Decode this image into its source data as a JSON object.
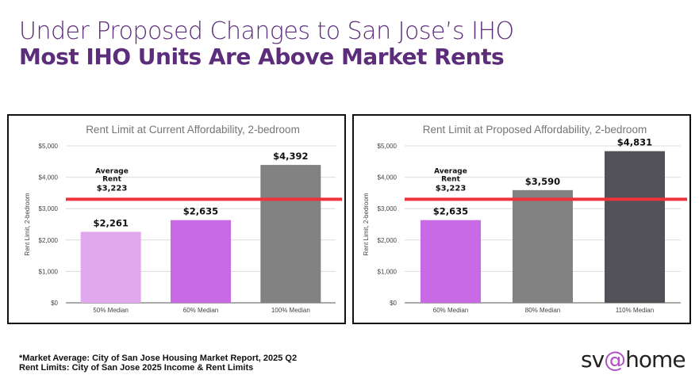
{
  "header": {
    "line1": "Under Proposed Changes to San Jose’s IHO",
    "line2": "Most IHO Units Are Above Market Rents"
  },
  "chart_data": [
    {
      "type": "bar",
      "title": "Rent Limit at Current Affordability, 2-bedroom",
      "ylabel": "Rent Limit, 2-bedroom",
      "xlabel": "",
      "categories": [
        "50% Median",
        "60% Median",
        "100% Median"
      ],
      "values": [
        2261,
        2635,
        4392
      ],
      "value_labels": [
        "$2,261",
        "$2,635",
        "$4,392"
      ],
      "colors": [
        "#e2a8ee",
        "#c96ae5",
        "#828282"
      ],
      "ylim": [
        0,
        5000
      ],
      "yticks": [
        "$0",
        "$1,000",
        "$2,000",
        "$3,000",
        "$4,000",
        "$5,000"
      ],
      "reference_line": {
        "value": 3223,
        "color": "#f0323a",
        "label1": "Average",
        "label2": "Rent",
        "label3": "$3,223"
      },
      "grid": true
    },
    {
      "type": "bar",
      "title": "Rent Limit at Proposed Affordability, 2-bedroom",
      "ylabel": "Rent Limit, 2-bedroom",
      "xlabel": "",
      "categories": [
        "60% Median",
        "80% Median",
        "110% Median"
      ],
      "values": [
        2635,
        3590,
        4831
      ],
      "value_labels": [
        "$2,635",
        "$3,590",
        "$4,831"
      ],
      "colors": [
        "#c96ae5",
        "#828282",
        "#525157"
      ],
      "ylim": [
        0,
        5000
      ],
      "yticks": [
        "$0",
        "$1,000",
        "$2,000",
        "$3,000",
        "$4,000",
        "$5,000"
      ],
      "reference_line": {
        "value": 3223,
        "color": "#f0323a",
        "label1": "Average",
        "label2": "Rent",
        "label3": "$3,223"
      },
      "grid": true
    }
  ],
  "footer": {
    "note1": "*Market Average: City of San Jose Housing Market Report, 2025 Q2",
    "note2": "Rent Limits: City of San Jose 2025 Income & Rent Limits"
  },
  "logo": {
    "pre": "sv",
    "at": "@",
    "post": "home"
  }
}
